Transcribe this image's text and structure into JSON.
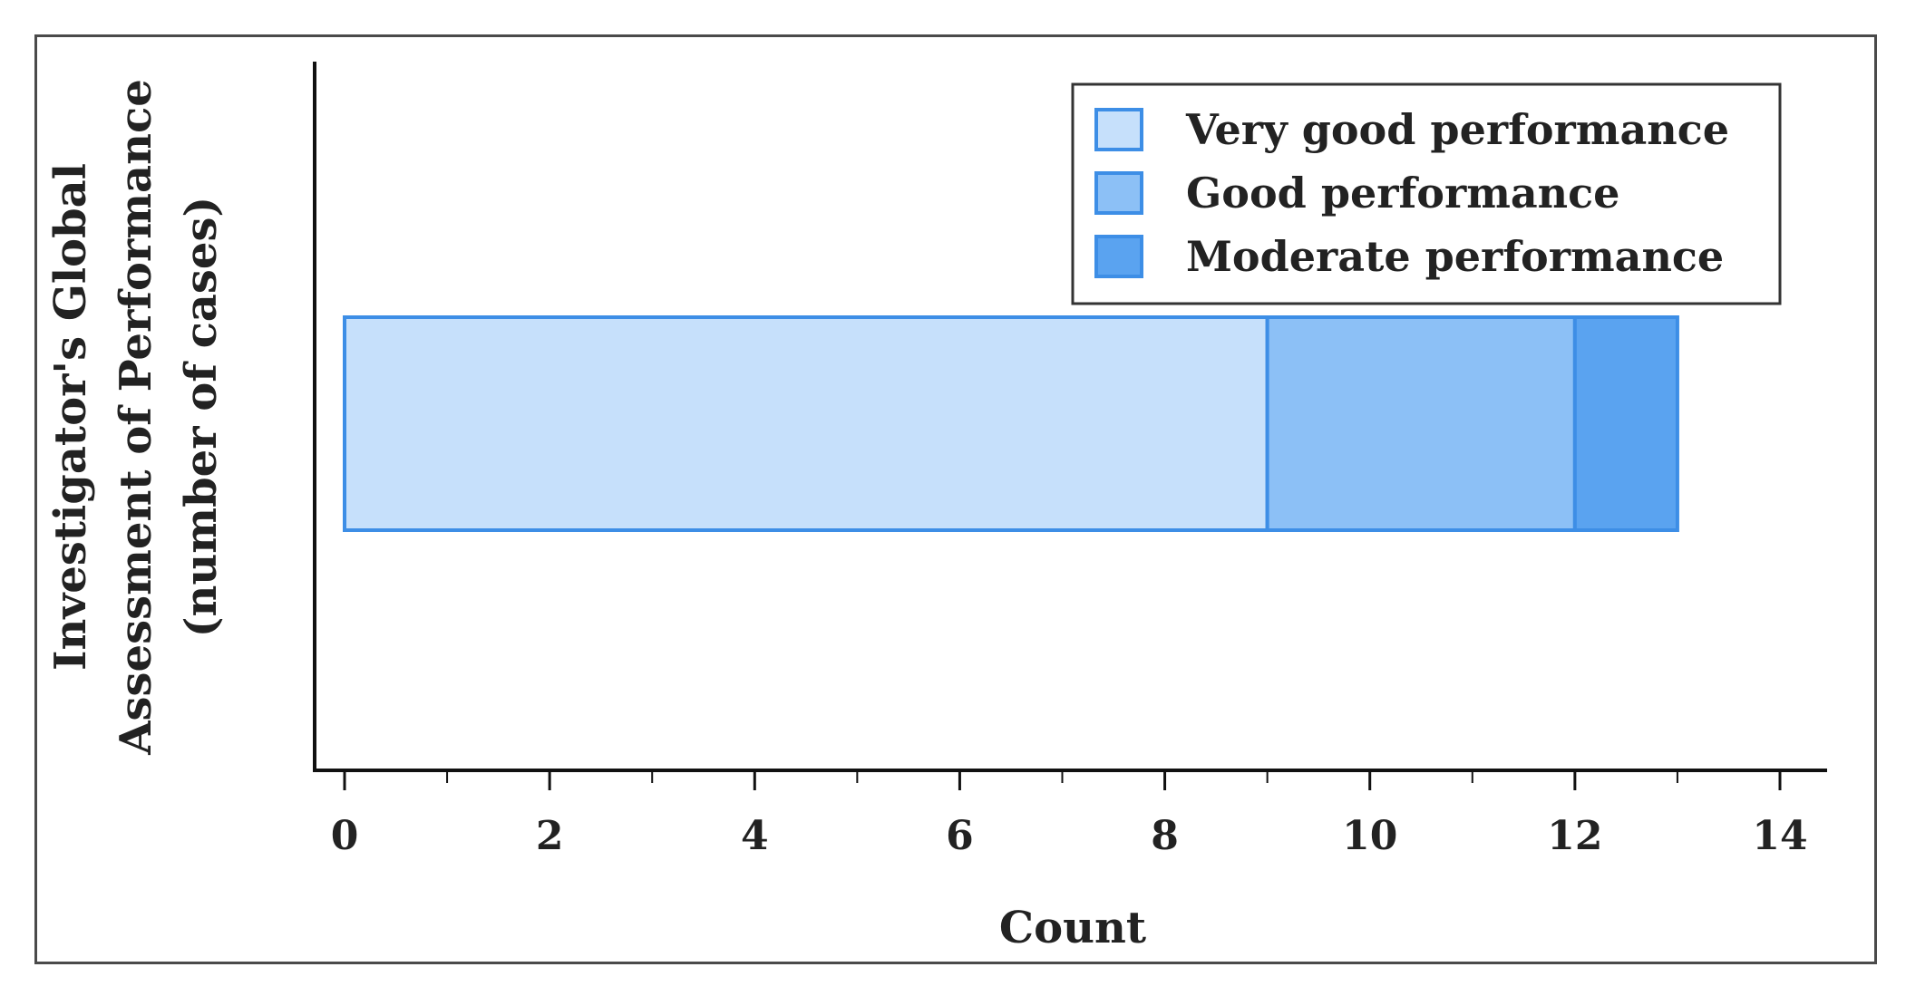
{
  "chart_data": {
    "type": "bar",
    "orientation": "horizontal",
    "stacked": true,
    "categories": [
      ""
    ],
    "series": [
      {
        "name": "Very good performance",
        "values": [
          9
        ],
        "color": "#c6e0fb"
      },
      {
        "name": "Good performance",
        "values": [
          3
        ],
        "color": "#8cc0f6"
      },
      {
        "name": "Moderate performance",
        "values": [
          1
        ],
        "color": "#5aa3f0"
      }
    ],
    "bar_edge_color": "#3d8ee6",
    "title": "",
    "xlabel": "Count",
    "ylabel_lines": [
      "Investigator's Global",
      "Assessment of Performance",
      "(number of cases)"
    ],
    "xlim": [
      0,
      14
    ],
    "xticks": [
      0,
      2,
      4,
      6,
      8,
      10,
      12,
      14
    ],
    "minor_ticks": true,
    "grid": false,
    "legend_position": "top-right"
  }
}
